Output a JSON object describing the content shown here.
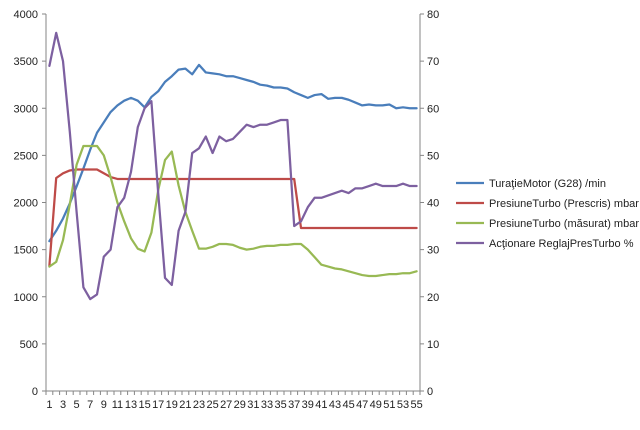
{
  "chart_data": {
    "type": "line",
    "title": "",
    "xlabel": "",
    "ylabel_left": "",
    "ylabel_right": "",
    "legend_position": "right",
    "grid": false,
    "x": [
      1,
      2,
      3,
      4,
      5,
      6,
      7,
      8,
      9,
      10,
      11,
      12,
      13,
      14,
      15,
      16,
      17,
      18,
      19,
      20,
      21,
      22,
      23,
      24,
      25,
      26,
      27,
      28,
      29,
      30,
      31,
      32,
      33,
      34,
      35,
      36,
      37,
      38,
      39,
      40,
      41,
      42,
      43,
      44,
      45,
      46,
      47,
      48,
      49,
      50,
      51,
      52,
      53,
      54,
      55
    ],
    "x_tick_labels": [
      "1",
      "3",
      "5",
      "7",
      "9",
      "11",
      "13",
      "15",
      "17",
      "19",
      "21",
      "23",
      "25",
      "27",
      "29",
      "31",
      "33",
      "35",
      "37",
      "39",
      "41",
      "43",
      "45",
      "47",
      "49",
      "51",
      "53",
      "55"
    ],
    "ylim_left": [
      0,
      4000
    ],
    "y_ticks_left": [
      "0",
      "500",
      "1000",
      "1500",
      "2000",
      "2500",
      "3000",
      "3500",
      "4000"
    ],
    "ylim_right": [
      0,
      80
    ],
    "y_ticks_right": [
      "0",
      "10",
      "20",
      "30",
      "40",
      "50",
      "60",
      "70",
      "80"
    ],
    "series": [
      {
        "name": "TuraţieMotor (G28)  /min",
        "color": "#4a7ebb",
        "axis": "left",
        "values": [
          1590,
          1700,
          1830,
          1990,
          2170,
          2360,
          2560,
          2740,
          2850,
          2960,
          3030,
          3080,
          3110,
          3080,
          3010,
          3120,
          3180,
          3280,
          3340,
          3410,
          3420,
          3360,
          3460,
          3380,
          3370,
          3360,
          3340,
          3340,
          3320,
          3300,
          3280,
          3250,
          3240,
          3220,
          3220,
          3210,
          3170,
          3140,
          3110,
          3140,
          3150,
          3100,
          3110,
          3110,
          3090,
          3060,
          3030,
          3040,
          3030,
          3030,
          3040,
          3000,
          3010,
          3000,
          3000
        ]
      },
      {
        "name": "PresiuneTurbo (Prescris)  mbar",
        "color": "#be4b48",
        "axis": "left",
        "values": [
          1330,
          2260,
          2310,
          2340,
          2350,
          2350,
          2350,
          2350,
          2310,
          2270,
          2250,
          2250,
          2250,
          2250,
          2250,
          2250,
          2250,
          2250,
          2250,
          2250,
          2250,
          2250,
          2250,
          2250,
          2250,
          2250,
          2250,
          2250,
          2250,
          2250,
          2250,
          2250,
          2250,
          2250,
          2250,
          2250,
          2250,
          1730,
          1730,
          1730,
          1730,
          1730,
          1730,
          1730,
          1730,
          1730,
          1730,
          1730,
          1730,
          1730,
          1730,
          1730,
          1730,
          1730,
          1730
        ]
      },
      {
        "name": "PresiuneTurbo (măsurat)  mbar",
        "color": "#98b954",
        "axis": "left",
        "values": [
          1320,
          1370,
          1600,
          1980,
          2400,
          2600,
          2600,
          2600,
          2500,
          2270,
          2000,
          1800,
          1620,
          1510,
          1480,
          1680,
          2130,
          2450,
          2540,
          2180,
          1900,
          1700,
          1510,
          1510,
          1530,
          1560,
          1560,
          1550,
          1520,
          1500,
          1510,
          1530,
          1540,
          1540,
          1550,
          1550,
          1560,
          1560,
          1500,
          1420,
          1340,
          1320,
          1300,
          1290,
          1270,
          1250,
          1230,
          1220,
          1220,
          1230,
          1240,
          1240,
          1250,
          1250,
          1270
        ]
      },
      {
        "name": "Acţionare ReglajPresTurbo  %",
        "color": "#7d60a0",
        "axis": "right",
        "values": [
          69,
          76,
          70,
          55,
          38,
          22,
          19.5,
          20.5,
          28.5,
          30,
          39,
          41,
          46.5,
          56,
          60,
          61.5,
          42,
          24,
          22.5,
          34,
          38,
          50.5,
          51.5,
          54,
          50.5,
          54,
          53,
          53.5,
          55,
          56.5,
          56,
          56.5,
          56.5,
          57,
          57.5,
          57.5,
          35,
          36,
          39,
          41,
          41,
          41.5,
          42,
          42.5,
          42,
          43,
          43,
          43.5,
          44,
          43.5,
          43.5,
          43.5,
          44,
          43.5,
          43.5
        ]
      }
    ]
  }
}
